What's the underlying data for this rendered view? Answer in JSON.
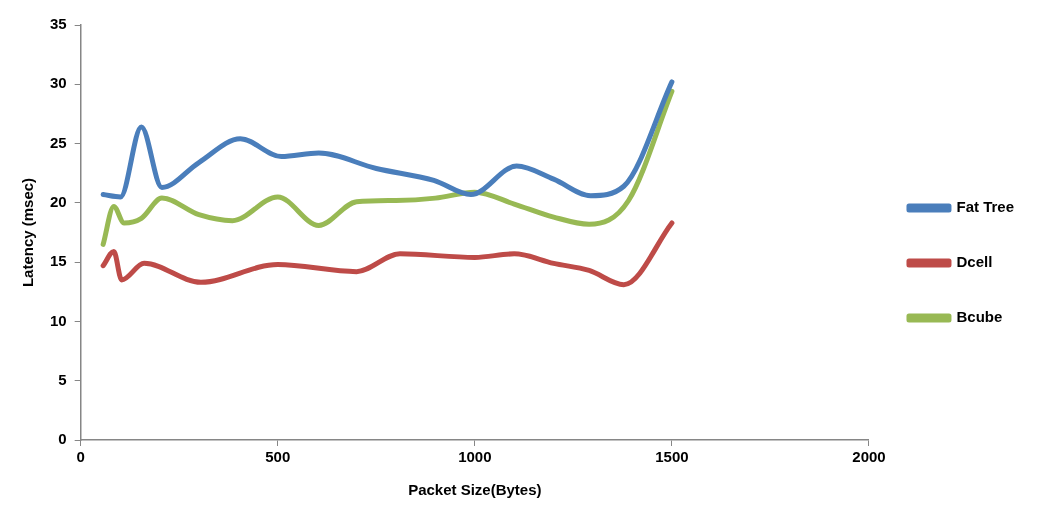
{
  "chart_data": {
    "type": "line",
    "xlabel": "Packet Size(Bytes)",
    "ylabel": "Latency (msec)",
    "xlim": [
      0,
      2000
    ],
    "xticks": [
      0,
      500,
      1000,
      1500,
      2000
    ],
    "ylim": [
      0,
      35
    ],
    "yticks": [
      0,
      5,
      10,
      15,
      20,
      25,
      30,
      35
    ],
    "legend": "right",
    "marker": "none",
    "line_style": "solid",
    "series": [
      {
        "name": "Fat Tree",
        "color": "#4a7ebb",
        "x": [
          57,
          101,
          154,
          206,
          300,
          405,
          509,
          604,
          750,
          896,
          990,
          1106,
          1200,
          1294,
          1378,
          1500
        ],
        "values": [
          20.7,
          20.5,
          26.4,
          21.3,
          23.4,
          25.4,
          23.9,
          24.2,
          22.9,
          21.9,
          20.7,
          23.1,
          22.0,
          20.6,
          21.4,
          30.2
        ]
      },
      {
        "name": "Dcell",
        "color": "#be4b48",
        "x": [
          57,
          84,
          104,
          161,
          305,
          500,
          700,
          810,
          1000,
          1100,
          1200,
          1290,
          1378,
          1500
        ],
        "values": [
          14.7,
          15.9,
          13.5,
          14.9,
          13.3,
          14.8,
          14.2,
          15.7,
          15.4,
          15.7,
          14.9,
          14.3,
          13.1,
          18.3
        ]
      },
      {
        "name": "Bcube",
        "color": "#98b954",
        "x": [
          57,
          84,
          110,
          154,
          206,
          300,
          385,
          500,
          604,
          700,
          800,
          900,
          1000,
          1100,
          1200,
          1290,
          1390,
          1500
        ],
        "values": [
          16.5,
          19.7,
          18.3,
          18.7,
          20.4,
          19.0,
          18.5,
          20.5,
          18.1,
          20.1,
          20.2,
          20.4,
          20.9,
          19.9,
          18.8,
          18.2,
          20.2,
          29.4
        ]
      }
    ]
  }
}
